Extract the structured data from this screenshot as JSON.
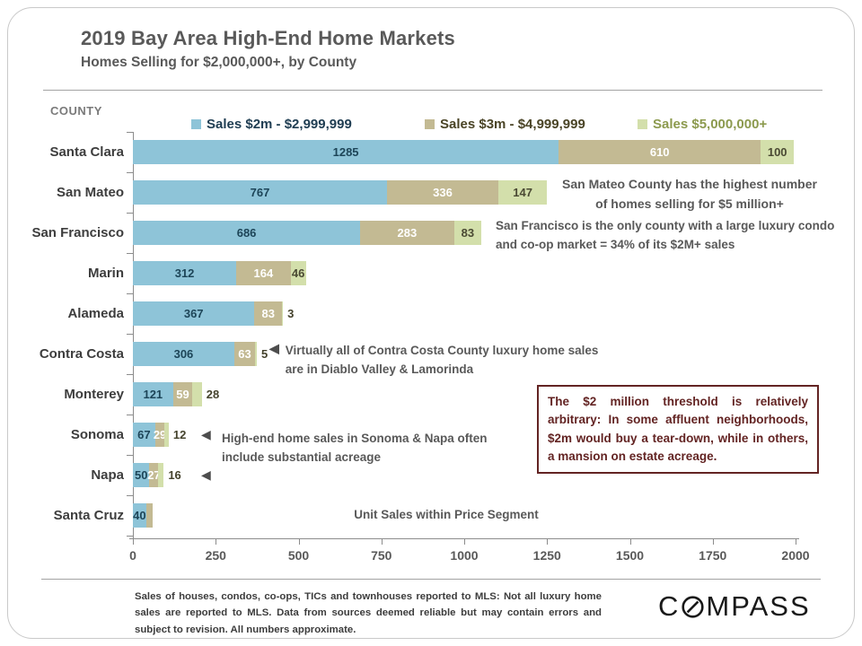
{
  "header": {
    "title": "2019 Bay Area High-End Home Markets",
    "subtitle": "Homes Selling for $2,000,000+, by County"
  },
  "chart_data": {
    "type": "bar",
    "orientation": "horizontal",
    "title": "2019 Bay Area High-End Home Markets",
    "subtitle": "Homes Selling for $2,000,000+, by County",
    "xlabel": "Unit Sales within Price Segment",
    "ylabel": "COUNTY",
    "xlim": [
      0,
      2000
    ],
    "x_ticks": [
      "0",
      "250",
      "500",
      "750",
      "1000",
      "1250",
      "1500",
      "1750",
      "2000"
    ],
    "grid": false,
    "legend_position": "top",
    "categories": [
      "Santa Clara",
      "San Mateo",
      "San Francisco",
      "Marin",
      "Alameda",
      "Contra Costa",
      "Monterey",
      "Sonoma",
      "Napa",
      "Santa Cruz"
    ],
    "series": [
      {
        "name": "Sales $2m - $2,999,999",
        "color": "#8ec4d8",
        "label_color": "#1d4558",
        "legend_text_color": "#1f3d52",
        "values": [
          1285,
          767,
          686,
          312,
          367,
          306,
          121,
          67,
          50,
          40
        ]
      },
      {
        "name": "Sales $3m - $4,999,999",
        "color": "#c3ba93",
        "label_color": "#ffffff",
        "legend_text_color": "#4a4426",
        "values": [
          610,
          336,
          283,
          164,
          83,
          63,
          59,
          29,
          27,
          20
        ]
      },
      {
        "name": "Sales $5,000,000+",
        "color": "#d3dfab",
        "label_color": "#4a4933",
        "legend_text_color": "#8c9a4e",
        "values": [
          100,
          147,
          83,
          46,
          3,
          5,
          28,
          12,
          16,
          0
        ]
      }
    ],
    "value_labels": [
      [
        "1285",
        "610",
        "100"
      ],
      [
        "767",
        "336",
        "147"
      ],
      [
        "686",
        "283",
        "83"
      ],
      [
        "312",
        "164",
        "46"
      ],
      [
        "367",
        "83",
        "3"
      ],
      [
        "306",
        "63",
        "5"
      ],
      [
        "121",
        "59",
        "28"
      ],
      [
        "67",
        "29",
        "12"
      ],
      [
        "50",
        "27",
        "16"
      ],
      [
        "40",
        "",
        ""
      ]
    ],
    "outside_label_color": "#44422c"
  },
  "annotations": {
    "arrow": "◀",
    "san_mateo": "San Mateo County has the highest number of homes selling for $5 million+",
    "san_francisco": "San Francisco is the only county with a large luxury condo and co-op market = 34% of its $2M+ sales",
    "contra_costa": "Virtually all of Contra Costa County luxury home sales are in Diablo Valley & Lamorinda",
    "sonoma_napa": "High-end home sales in Sonoma & Napa often include substantial acreage",
    "callout": "The $2 million threshold is relatively arbitrary: In some affluent neighborhoods, $2m would buy a tear-down, while in others, a mansion on estate acreage."
  },
  "footer": {
    "disclaimer": "Sales of houses, condos, co-ops, TICs and townhouses reported to MLS: Not all luxury home sales are reported to MLS. Data from sources deemed reliable but may contain errors and subject to revision. All numbers approximate.",
    "logo_c": "C",
    "logo_mpass": "MPASS"
  }
}
